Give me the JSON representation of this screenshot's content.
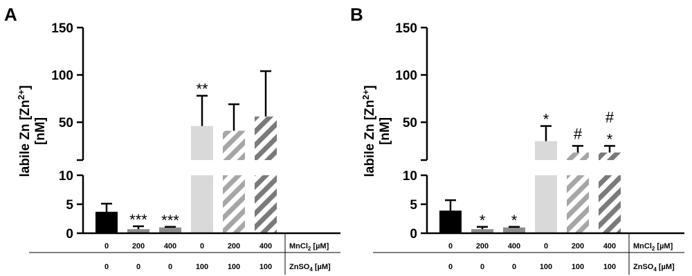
{
  "chart_data": [
    {
      "panel": "A",
      "type": "bar",
      "ylabel": "labile Zn [Zn2+] [nM]",
      "y_axis": {
        "segments": [
          [
            0,
            10
          ],
          [
            10,
            150
          ]
        ],
        "ticks_lower": [
          0,
          5,
          10
        ],
        "ticks_upper": [
          50,
          100,
          150
        ]
      },
      "conditions": [
        {
          "name": "MnCl2 [µM]",
          "values": [
            "0",
            "200",
            "400",
            "0",
            "200",
            "400"
          ]
        },
        {
          "name": "ZnSO4 [µM]",
          "values": [
            "0",
            "0",
            "0",
            "100",
            "100",
            "100"
          ]
        }
      ],
      "bars": [
        {
          "value": 3.7,
          "error": 1.4,
          "annotation": "",
          "fill": "black"
        },
        {
          "value": 0.7,
          "error": 0.5,
          "annotation": "***",
          "fill": "gray-solid"
        },
        {
          "value": 1.0,
          "error": 0.1,
          "annotation": "***",
          "fill": "gray-solid"
        },
        {
          "value": 46,
          "error": 32,
          "annotation": "**",
          "fill": "light-gray"
        },
        {
          "value": 41,
          "error": 28,
          "annotation": "",
          "fill": "light-hatch"
        },
        {
          "value": 56,
          "error": 48,
          "annotation": "",
          "fill": "dark-hatch"
        }
      ]
    },
    {
      "panel": "B",
      "type": "bar",
      "ylabel": "labile Zn [Zn2+] [nM]",
      "y_axis": {
        "segments": [
          [
            0,
            10
          ],
          [
            10,
            150
          ]
        ],
        "ticks_lower": [
          0,
          5,
          10
        ],
        "ticks_upper": [
          50,
          100,
          150
        ]
      },
      "conditions": [
        {
          "name": "MnCl2 [µM]",
          "values": [
            "0",
            "200",
            "400",
            "0",
            "200",
            "400"
          ]
        },
        {
          "name": "ZnSO4 [µM]",
          "values": [
            "0",
            "0",
            "0",
            "100",
            "100",
            "100"
          ]
        }
      ],
      "bars": [
        {
          "value": 3.9,
          "error": 1.8,
          "annotation": "",
          "fill": "black"
        },
        {
          "value": 0.7,
          "error": 0.4,
          "annotation": "*",
          "fill": "gray-solid"
        },
        {
          "value": 1.0,
          "error": 0.1,
          "annotation": "*",
          "fill": "gray-solid"
        },
        {
          "value": 30,
          "error": 16,
          "annotation": "*",
          "fill": "light-gray"
        },
        {
          "value": 18,
          "error": 7,
          "annotation": "#",
          "fill": "light-hatch"
        },
        {
          "value": 18,
          "error": 7,
          "annotation": "#\n*",
          "fill": "dark-hatch"
        }
      ]
    }
  ],
  "colors": {
    "black": "#000000",
    "gray-solid": "#8c8c8c",
    "light-gray": "#d9d9d9",
    "hatch-light": "#a6a6a6",
    "hatch-dark": "#7a7a7a"
  }
}
